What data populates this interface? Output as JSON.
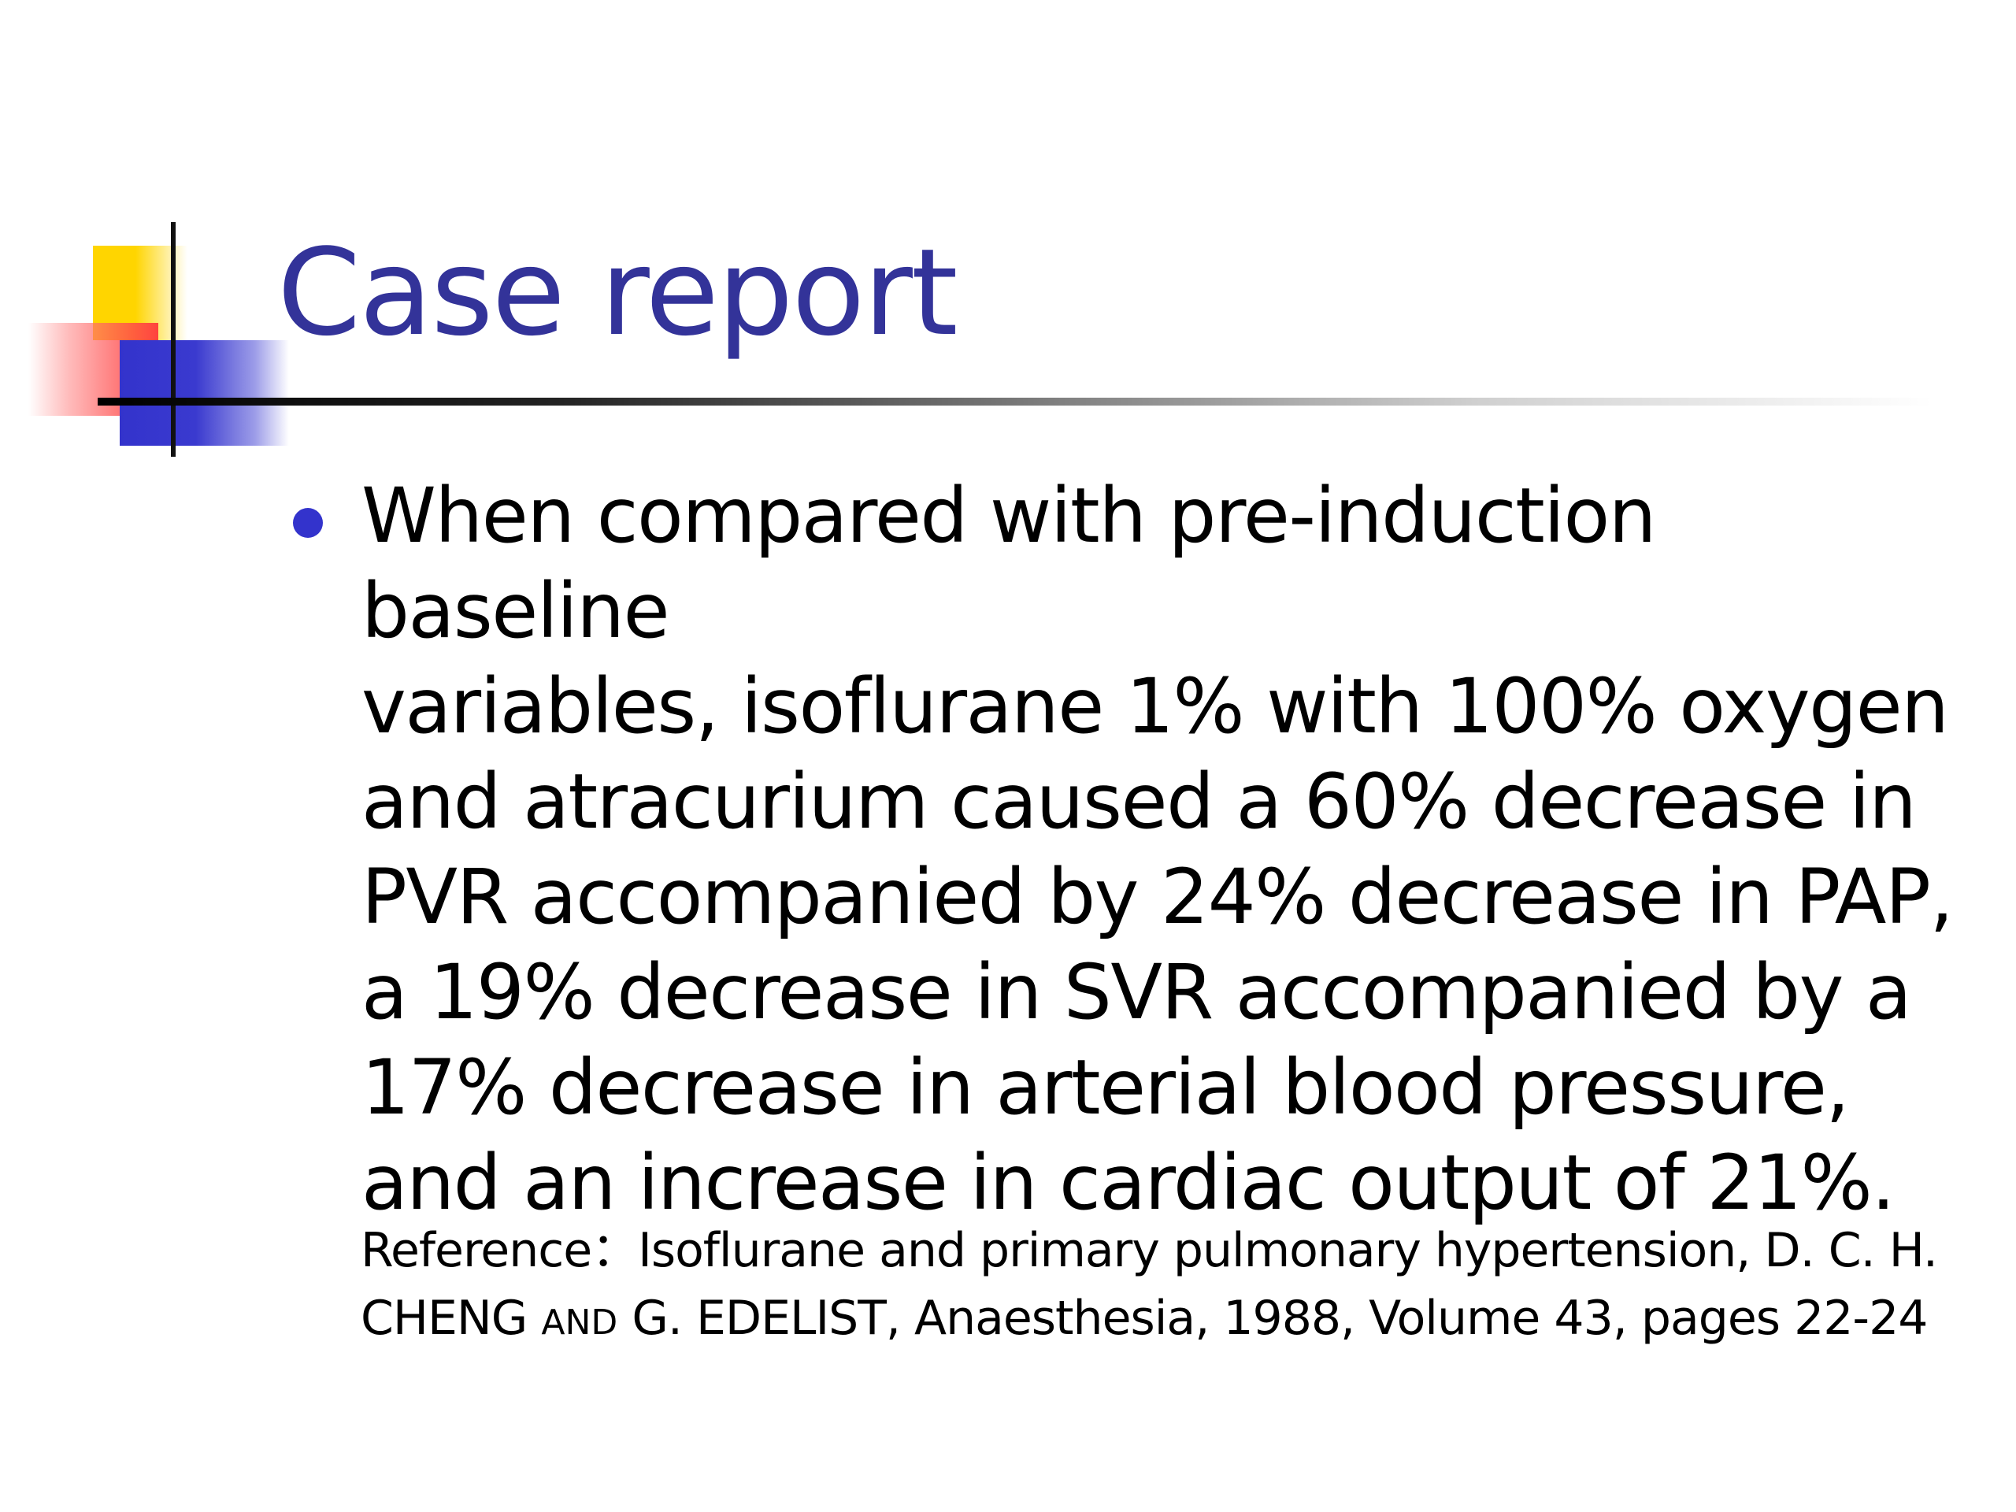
{
  "slide": {
    "title": "Case report",
    "bullet": "When compared with pre-induction baseline\nvariables, isoflurane 1% with 100% oxygen\nand atracurium caused a 60% decrease in\nPVR accompanied by 24% decrease in PAP,\na 19% decrease in SVR accompanied by a\n17% decrease in arterial blood pressure,\nand an increase in cardiac output of 21%.",
    "reference": {
      "line1": "Reference：Isoflurane and primary pulmonary hypertension, D. C. H.",
      "line2_before": "CHENG ",
      "line2_smallcaps": "AND",
      "line2_after": " G. EDELIST, Anaesthesia, 1988, Volume 43, pages 22-24"
    },
    "colors": {
      "title": "#333399",
      "bullet": "#3333cc",
      "accent_yellow": "#ffd500",
      "accent_red": "#ff3a3a",
      "accent_blue": "#3333cc"
    }
  }
}
